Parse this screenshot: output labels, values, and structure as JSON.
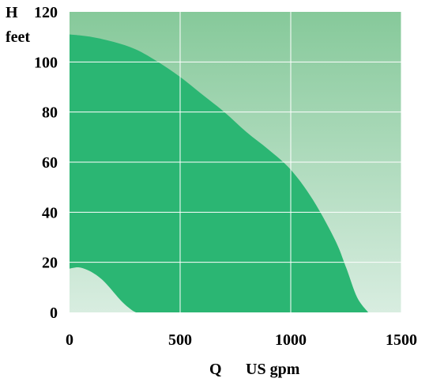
{
  "chart_data": {
    "type": "area",
    "title": "",
    "xlabel": "Q",
    "xlabel_unit": "US gpm",
    "ylabel": "H",
    "ylabel_unit": "feet",
    "xlim": [
      0,
      1500
    ],
    "ylim": [
      0,
      120
    ],
    "x_ticks": [
      0,
      500,
      1000,
      1500
    ],
    "y_ticks": [
      0,
      20,
      40,
      60,
      80,
      100,
      120
    ],
    "x_tick_labels": [
      "0",
      "500",
      "1000",
      "1500"
    ],
    "y_tick_labels": [
      "0",
      "20",
      "40",
      "60",
      "80",
      "100",
      "120"
    ],
    "grid": true,
    "legend": "none",
    "series": [
      {
        "role": "upper-boundary",
        "x": [
          0,
          100,
          200,
          300,
          400,
          500,
          600,
          700,
          800,
          900,
          1000,
          1100,
          1200,
          1250,
          1300,
          1350
        ],
        "y": [
          111,
          110,
          108,
          105,
          100,
          94,
          87,
          80,
          72,
          65,
          57,
          45,
          29,
          18,
          6,
          0
        ]
      },
      {
        "role": "lower-boundary",
        "x": [
          0,
          40,
          80,
          120,
          160,
          200,
          240,
          280,
          300
        ],
        "y": [
          17.5,
          18,
          17,
          15,
          12,
          8,
          4,
          1,
          0
        ]
      }
    ],
    "colors": {
      "area_fill": "#2bb673",
      "background_top": "#86c99a",
      "background_bottom": "#d8ede0",
      "grid": "#ffffff",
      "text": "#000000"
    }
  }
}
